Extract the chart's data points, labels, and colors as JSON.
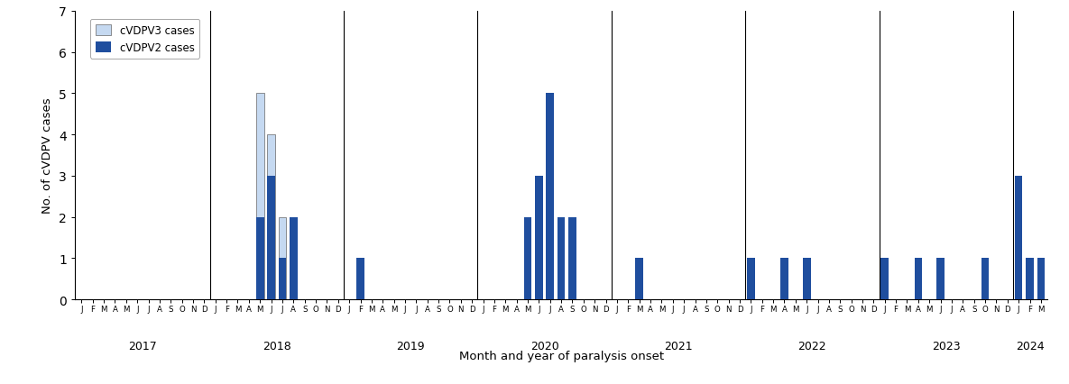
{
  "ylabel": "No. of cVDPV cases",
  "xlabel": "Month and year of paralysis onset",
  "ylim": [
    0,
    7
  ],
  "yticks": [
    0,
    1,
    2,
    3,
    4,
    5,
    6,
    7
  ],
  "background_color": "#ffffff",
  "bar_color_v2": "#1f4e9e",
  "bar_color_v3": "#c5d9f1",
  "bar_edge_color": "#666666",
  "legend_v3": "cVDPV3 cases",
  "legend_v2": "cVDPV2 cases",
  "cVDPV2": [
    0,
    0,
    0,
    0,
    0,
    0,
    0,
    0,
    0,
    0,
    0,
    0,
    0,
    0,
    0,
    0,
    2,
    3,
    1,
    2,
    0,
    0,
    0,
    0,
    0,
    1,
    0,
    0,
    0,
    0,
    0,
    0,
    0,
    0,
    0,
    0,
    0,
    0,
    0,
    0,
    2,
    3,
    5,
    2,
    2,
    0,
    0,
    0,
    0,
    0,
    1,
    0,
    0,
    0,
    0,
    0,
    0,
    0,
    0,
    0,
    1,
    0,
    0,
    1,
    0,
    1,
    0,
    0,
    0,
    0,
    0,
    0,
    1,
    0,
    0,
    1,
    0,
    1,
    0,
    0,
    0,
    1,
    0,
    0,
    3,
    1,
    1
  ],
  "cVDPV3": [
    0,
    0,
    0,
    0,
    0,
    0,
    0,
    0,
    0,
    0,
    0,
    0,
    0,
    0,
    0,
    0,
    5,
    4,
    2,
    0,
    0,
    0,
    0,
    0,
    0,
    0,
    0,
    0,
    0,
    0,
    0,
    0,
    0,
    0,
    0,
    0,
    0,
    0,
    0,
    0,
    0,
    0,
    0,
    0,
    0,
    0,
    0,
    0,
    0,
    0,
    0,
    0,
    0,
    0,
    0,
    0,
    0,
    0,
    0,
    0,
    0,
    0,
    0,
    0,
    0,
    0,
    0,
    0,
    0,
    0,
    0,
    0,
    0,
    0,
    0,
    0,
    0,
    0,
    0,
    0,
    0,
    0,
    0,
    0,
    0,
    0,
    0
  ],
  "month_labels": [
    "J",
    "F",
    "M",
    "A",
    "M",
    "J",
    "J",
    "A",
    "S",
    "O",
    "N",
    "D",
    "J",
    "F",
    "M",
    "A",
    "M",
    "J",
    "J",
    "A",
    "S",
    "O",
    "N",
    "D",
    "J",
    "F",
    "M",
    "A",
    "M",
    "J",
    "J",
    "A",
    "S",
    "O",
    "N",
    "D",
    "J",
    "F",
    "M",
    "A",
    "M",
    "J",
    "J",
    "A",
    "S",
    "O",
    "N",
    "D",
    "J",
    "F",
    "M",
    "A",
    "M",
    "J",
    "J",
    "A",
    "S",
    "O",
    "N",
    "D",
    "J",
    "F",
    "M",
    "A",
    "M",
    "J",
    "J",
    "A",
    "S",
    "O",
    "N",
    "D",
    "J",
    "F",
    "M",
    "A",
    "M",
    "J",
    "J",
    "A",
    "S",
    "O",
    "N",
    "D",
    "J",
    "F",
    "M"
  ],
  "year_labels": [
    "2017",
    "2018",
    "2019",
    "2020",
    "2021",
    "2022",
    "2023",
    "2024"
  ],
  "year_centers": [
    5.5,
    17.5,
    29.5,
    41.5,
    53.5,
    65.5,
    77.5,
    85.0
  ],
  "year_dividers": [
    11.5,
    23.5,
    35.5,
    47.5,
    59.5,
    71.5,
    83.5
  ]
}
